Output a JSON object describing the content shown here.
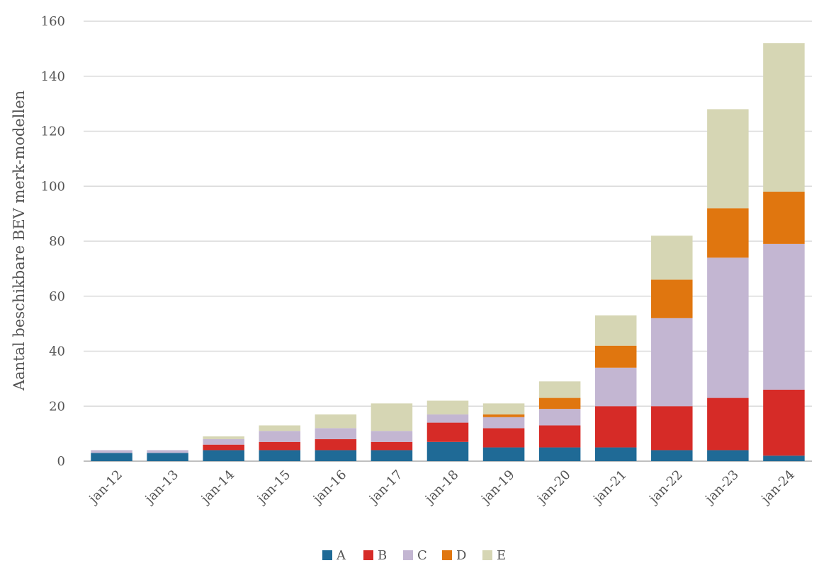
{
  "chart_data": {
    "type": "bar",
    "stacked": true,
    "title": "",
    "xlabel": "",
    "ylabel": "Aantal beschikbare BEV merk-modellen",
    "ylim": [
      0,
      160
    ],
    "yticks": [
      0,
      20,
      40,
      60,
      80,
      100,
      120,
      140,
      160
    ],
    "grid": true,
    "legend_position": "bottom",
    "categories": [
      "jan-12",
      "jan-13",
      "jan-14",
      "jan-15",
      "jan-16",
      "jan-17",
      "jan-18",
      "jan-19",
      "jan-20",
      "jan-21",
      "jan-22",
      "jan-23",
      "jan-24"
    ],
    "series": [
      {
        "name": "A",
        "color": "#1f6a96",
        "values": [
          3,
          3,
          4,
          4,
          4,
          4,
          7,
          5,
          5,
          5,
          4,
          4,
          2
        ]
      },
      {
        "name": "B",
        "color": "#d62b27",
        "values": [
          0,
          0,
          2,
          3,
          4,
          3,
          7,
          7,
          8,
          15,
          16,
          19,
          24
        ]
      },
      {
        "name": "C",
        "color": "#c3b6d2",
        "values": [
          1,
          1,
          2,
          4,
          4,
          4,
          3,
          4,
          6,
          14,
          32,
          51,
          53
        ]
      },
      {
        "name": "D",
        "color": "#e0760f",
        "values": [
          0,
          0,
          0,
          0,
          0,
          0,
          0,
          1,
          4,
          8,
          14,
          18,
          19
        ]
      },
      {
        "name": "E",
        "color": "#d6d6b4",
        "values": [
          0,
          0,
          1,
          2,
          5,
          10,
          5,
          4,
          6,
          11,
          16,
          36,
          54
        ]
      }
    ]
  }
}
